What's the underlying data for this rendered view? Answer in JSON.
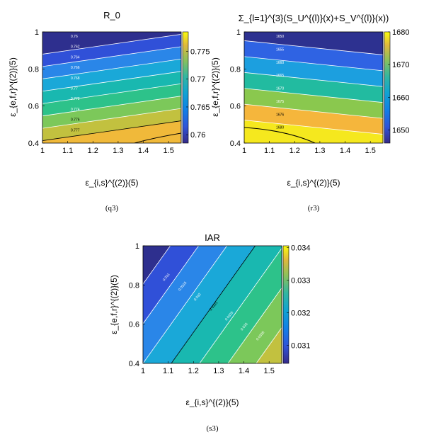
{
  "chart_data": [
    {
      "type": "heatmap",
      "title": "R_0",
      "xlabel": "ε_{i,s}^{(2)}(5)",
      "ylabel": "ε_{e,f,r}^{(2)}(5)",
      "caption": "(q3)",
      "xlim": [
        1,
        1.55
      ],
      "ylim": [
        0.4,
        1
      ],
      "x_ticks": [
        "1",
        "1.1",
        "1.2",
        "1.3",
        "1.4",
        "1.5"
      ],
      "y_ticks": [
        "0.4",
        "0.6",
        "0.8",
        "1"
      ],
      "colorbar_ticks": [
        "0.775",
        "0.77",
        "0.765",
        "0.76"
      ],
      "colorbar_range": [
        0.7585,
        0.7785
      ],
      "band_colors": [
        "#2e2f8e",
        "#3050d8",
        "#2a86e8",
        "#1aa8d8",
        "#19b8b0",
        "#2dc28a",
        "#7cc85a",
        "#c2c13f",
        "#f0b93a"
      ],
      "contour_labels": [
        "0.76",
        "0.762",
        "0.764",
        "0.766",
        "0.768",
        "0.77",
        "0.772",
        "0.774",
        "0.776",
        "0.777"
      ]
    },
    {
      "type": "heatmap",
      "title": "Σ_{l=1}^{3}(S_U^{(l)}(x)+S_V^{(l)}(x))",
      "xlabel": "ε_{i,s}^{(2)}(5)",
      "ylabel": "ε_{e,f,r}^{(2)}(5)",
      "caption": "(r3)",
      "xlim": [
        1,
        1.55
      ],
      "ylim": [
        0.4,
        1
      ],
      "x_ticks": [
        "1",
        "1.1",
        "1.2",
        "1.3",
        "1.4",
        "1.5"
      ],
      "y_ticks": [
        "0.4",
        "0.6",
        "0.8",
        "1"
      ],
      "colorbar_ticks": [
        "1680",
        "1670",
        "1660",
        "1650"
      ],
      "colorbar_range": [
        1646,
        1680
      ],
      "band_colors": [
        "#2d3190",
        "#2f63e3",
        "#1c9fdf",
        "#22bba0",
        "#8ac84e",
        "#f5b63c",
        "#f5e81e"
      ],
      "contour_labels": [
        "1650",
        "1655",
        "1660",
        "1665",
        "1670",
        "1675",
        "1676",
        "1680"
      ]
    },
    {
      "type": "heatmap",
      "title": "IAR",
      "xlabel": "ε_{i,s}^{(2)}(5)",
      "ylabel": "ε_{e,f,r}^{(2)}(5)",
      "caption": "(s3)",
      "xlim": [
        1,
        1.55
      ],
      "ylim": [
        0.4,
        1
      ],
      "x_ticks": [
        "1",
        "1.1",
        "1.2",
        "1.3",
        "1.4",
        "1.5"
      ],
      "y_ticks": [
        "0.4",
        "0.6",
        "0.8",
        "1"
      ],
      "colorbar_ticks": [
        "0.034",
        "0.033",
        "0.032",
        "0.031"
      ],
      "colorbar_range": [
        0.03045,
        0.03405
      ],
      "band_colors": [
        "#2e2f8e",
        "#3050d8",
        "#2a86e8",
        "#1aa8d8",
        "#19b8b0",
        "#2dc28a",
        "#7cc85a",
        "#c2c13f",
        "#f0b93a"
      ],
      "contour_labels": [
        "0.031",
        "0.0315",
        "0.032",
        "0.0321",
        "0.0325",
        "0.033",
        "0.0335"
      ]
    }
  ]
}
